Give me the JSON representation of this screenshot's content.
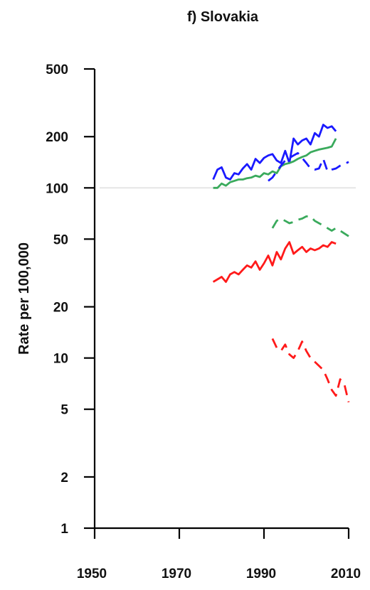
{
  "chart_data": {
    "type": "line",
    "title": "f) Slovakia",
    "xlabel": "",
    "ylabel": "Rate per 100,000",
    "yscale": "log",
    "xlim": [
      1950,
      2010
    ],
    "ylim": [
      1,
      500
    ],
    "xticks": [
      1950,
      1970,
      1990,
      2010
    ],
    "xtick_labels": [
      "1950",
      "1970",
      "1990",
      "2010"
    ],
    "yticks": [
      1,
      2,
      5,
      10,
      20,
      50,
      100,
      200,
      500
    ],
    "ytick_labels": [
      "1",
      "2",
      "5",
      "10",
      "20",
      "50",
      "100",
      "200",
      "500"
    ],
    "gridlines_y": [
      100
    ],
    "grid": false,
    "series": [
      {
        "color": "#1a1aff",
        "style": "solid",
        "x": [
          1978,
          1979,
          1980,
          1981,
          1982,
          1983,
          1984,
          1985,
          1986,
          1987,
          1988,
          1989,
          1990,
          1991,
          1992,
          1993,
          1994,
          1995,
          1996,
          1997,
          1998,
          1999,
          2000,
          2001,
          2002,
          2003,
          2004,
          2005,
          2006,
          2007
        ],
        "y": [
          112,
          128,
          132,
          115,
          112,
          122,
          120,
          130,
          138,
          128,
          148,
          140,
          150,
          155,
          158,
          145,
          140,
          165,
          140,
          195,
          180,
          190,
          195,
          180,
          210,
          200,
          235,
          225,
          230,
          215
        ]
      },
      {
        "color": "#3aaa5c",
        "style": "solid",
        "x": [
          1978,
          1979,
          1980,
          1981,
          1982,
          1983,
          1984,
          1985,
          1986,
          1987,
          1988,
          1989,
          1990,
          1991,
          1992,
          1993,
          1994,
          1995,
          1996,
          1997,
          1998,
          1999,
          2000,
          2001,
          2002,
          2003,
          2004,
          2005,
          2006,
          2007
        ],
        "y": [
          100,
          100,
          106,
          103,
          108,
          110,
          112,
          112,
          114,
          115,
          118,
          116,
          122,
          120,
          125,
          122,
          134,
          138,
          140,
          143,
          148,
          152,
          155,
          162,
          165,
          168,
          170,
          172,
          175,
          195
        ]
      },
      {
        "color": "#1a1aff",
        "style": "dashed",
        "x": [
          1991,
          1992,
          1993,
          1994,
          1995,
          1996,
          1997,
          1998,
          1999,
          2000,
          2001,
          2002,
          2003,
          2004,
          2005,
          2006,
          2007,
          2008,
          2009,
          2010
        ],
        "y": [
          110,
          115,
          125,
          135,
          145,
          150,
          155,
          160,
          150,
          140,
          130,
          128,
          130,
          148,
          125,
          128,
          130,
          135,
          138,
          142
        ]
      },
      {
        "color": "#3aaa5c",
        "style": "dashed",
        "x": [
          1992,
          1993,
          1994,
          1995,
          1996,
          1997,
          1998,
          1999,
          2000,
          2001,
          2002,
          2003,
          2004,
          2005,
          2006,
          2007,
          2008,
          2009,
          2010
        ],
        "y": [
          58,
          64,
          66,
          64,
          62,
          63,
          65,
          66,
          68,
          68,
          64,
          62,
          60,
          58,
          56,
          58,
          56,
          54,
          52
        ]
      },
      {
        "color": "#ff1a1a",
        "style": "solid",
        "x": [
          1978,
          1979,
          1980,
          1981,
          1982,
          1983,
          1984,
          1985,
          1986,
          1987,
          1988,
          1989,
          1990,
          1991,
          1992,
          1993,
          1994,
          1995,
          1996,
          1997,
          1998,
          1999,
          2000,
          2001,
          2002,
          2003,
          2004,
          2005,
          2006,
          2007
        ],
        "y": [
          28,
          29,
          30,
          28,
          31,
          32,
          31,
          33,
          35,
          34,
          37,
          33,
          36,
          40,
          35,
          42,
          38,
          44,
          48,
          41,
          43,
          45,
          42,
          44,
          43,
          44,
          46,
          45,
          48,
          47
        ]
      },
      {
        "color": "#ff1a1a",
        "style": "dashed",
        "x": [
          1992,
          1993,
          1994,
          1995,
          1996,
          1997,
          1998,
          1999,
          2000,
          2001,
          2002,
          2003,
          2004,
          2005,
          2006,
          2007,
          2008,
          2009,
          2010
        ],
        "y": [
          13,
          11.5,
          11,
          12,
          10.5,
          10,
          11,
          12.5,
          11,
          10,
          9.5,
          9,
          8.5,
          7.5,
          6.5,
          6,
          7.5,
          7,
          5.5
        ]
      }
    ]
  }
}
